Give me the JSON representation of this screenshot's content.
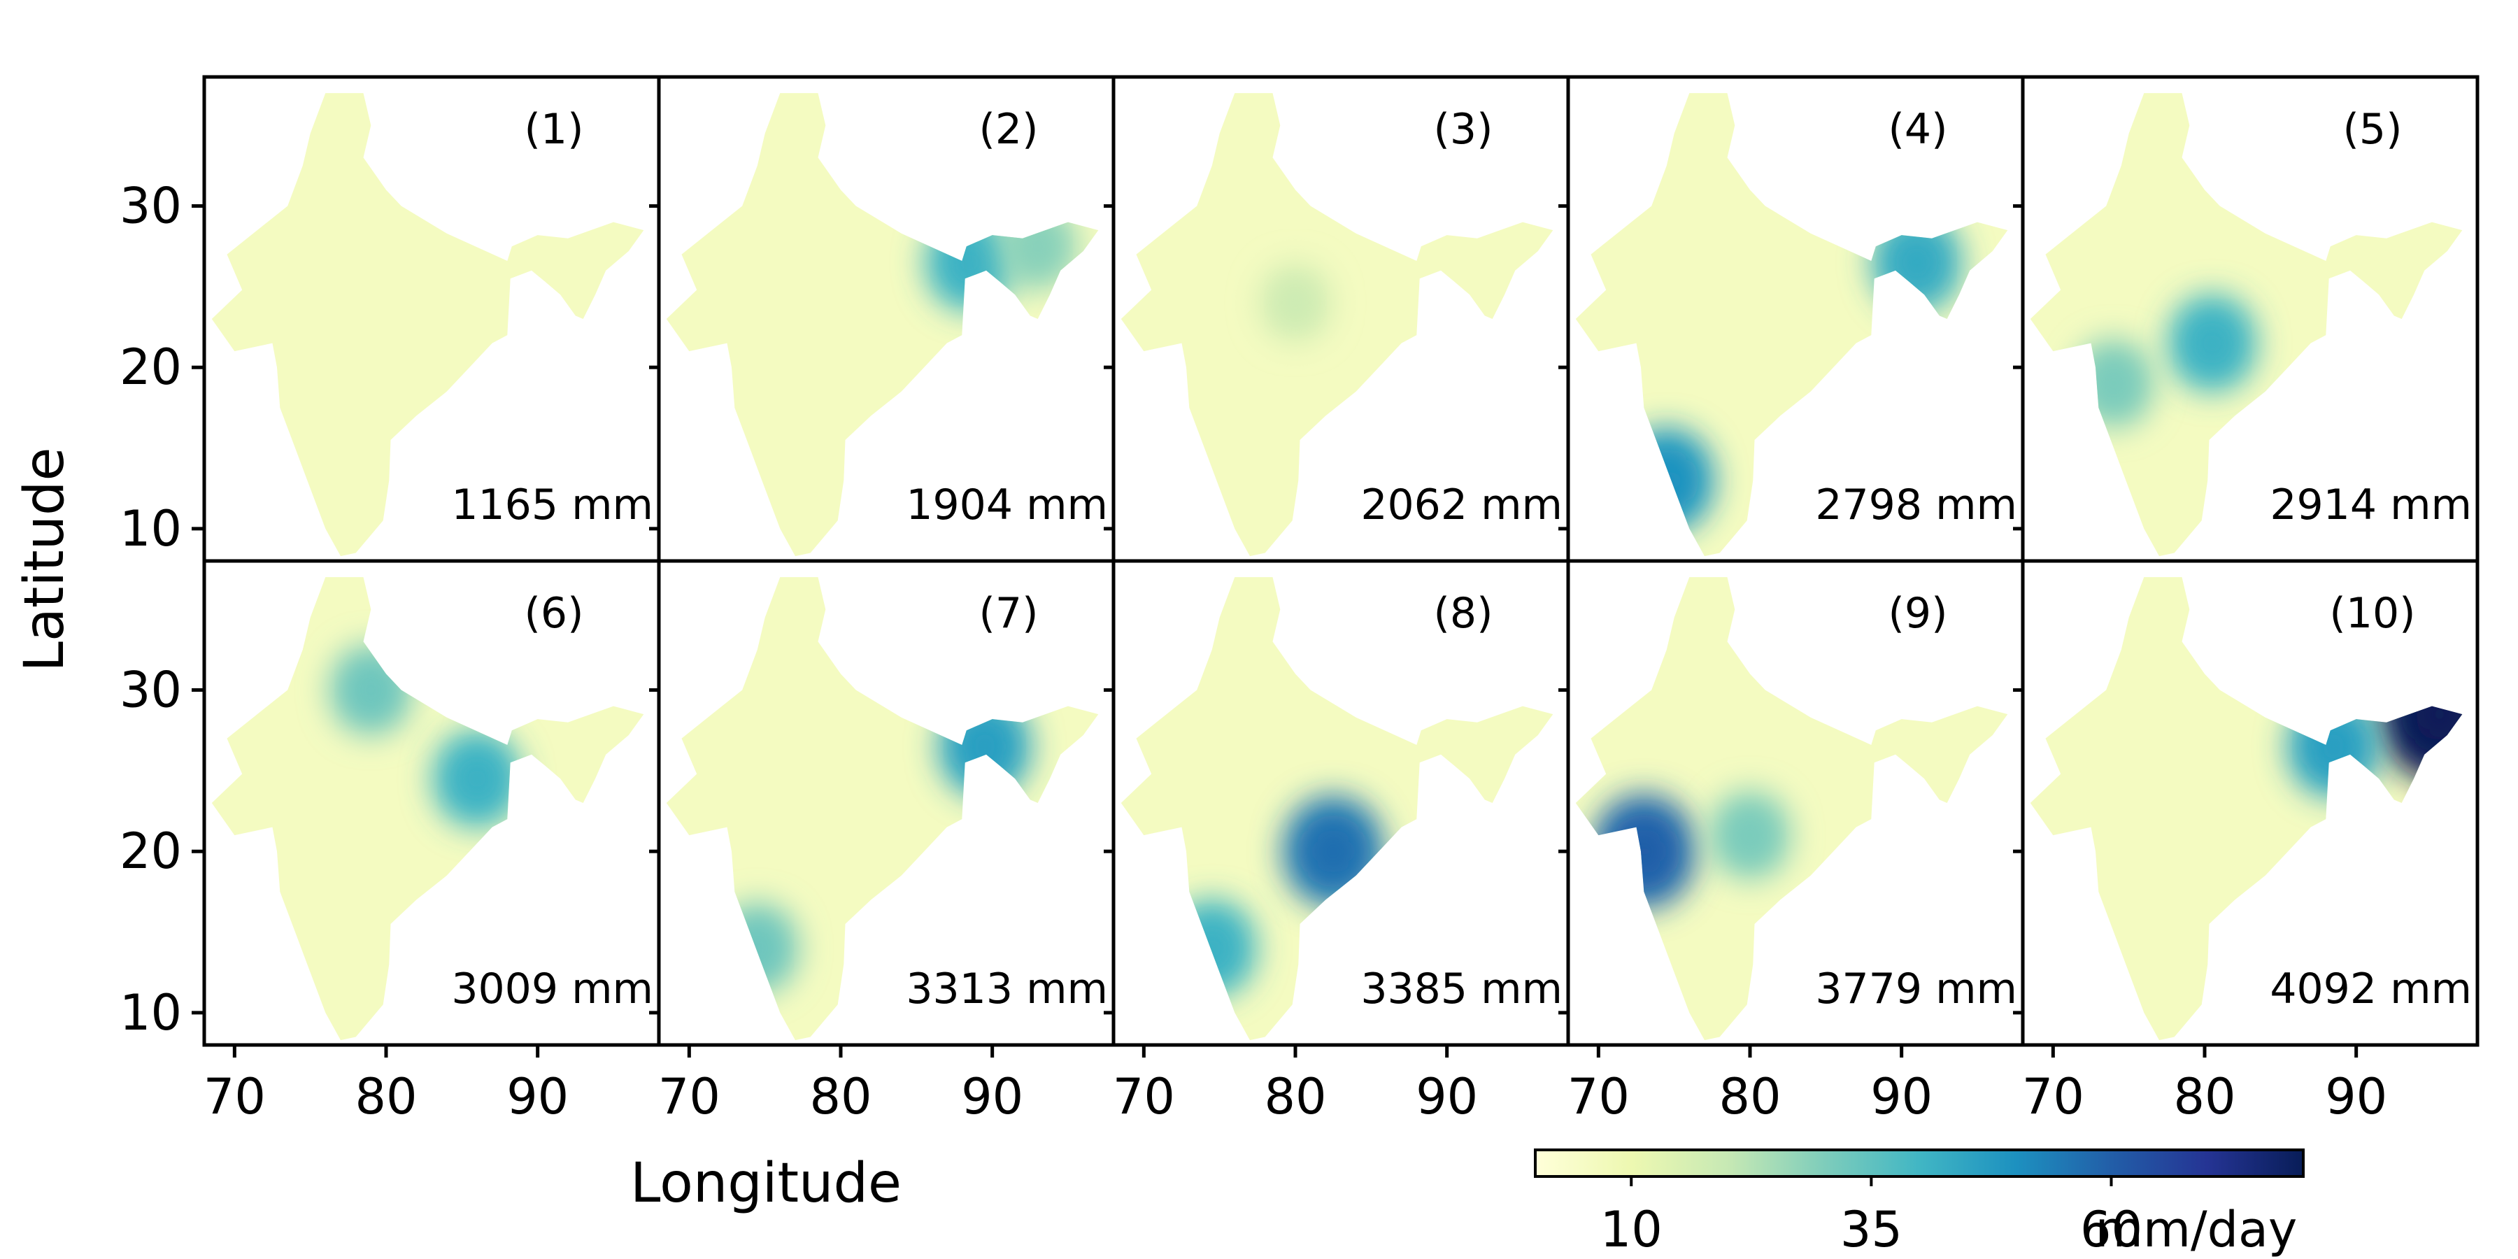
{
  "chart_data": {
    "type": "heatmap",
    "xlabel": "Longitude",
    "ylabel": "Latitude",
    "xlim": [
      68,
      98
    ],
    "ylim": [
      8,
      38
    ],
    "x_ticks": [
      "70",
      "80",
      "90"
    ],
    "y_ticks": [
      "10",
      "20",
      "30"
    ],
    "layout": {
      "rows": 2,
      "cols": 5
    },
    "colorbar": {
      "label": "mm/day",
      "range": [
        0,
        80
      ],
      "ticks": [
        10,
        35,
        60
      ],
      "tick_labels": [
        "10",
        "35",
        "60"
      ],
      "colormap": "YlGnBu",
      "colors": [
        "#ffffd9",
        "#edf8b1",
        "#c7e9b4",
        "#7fcdbb",
        "#41b6c4",
        "#1d91c0",
        "#225ea8",
        "#253494",
        "#081d58"
      ]
    },
    "panels": [
      {
        "label": "(1)",
        "total": "1165 mm",
        "hotspots": []
      },
      {
        "label": "(2)",
        "total": "1904 mm",
        "hotspots": [
          {
            "lon": 88.5,
            "lat": 26.5,
            "value": 40
          },
          {
            "lon": 93,
            "lat": 27.5,
            "value": 28
          }
        ]
      },
      {
        "label": "(3)",
        "total": "2062 mm",
        "hotspots": [
          {
            "lon": 80,
            "lat": 24,
            "value": 18
          }
        ]
      },
      {
        "label": "(4)",
        "total": "2798 mm",
        "hotspots": [
          {
            "lon": 74.5,
            "lat": 13,
            "value": 48
          },
          {
            "lon": 91,
            "lat": 26.5,
            "value": 42
          }
        ]
      },
      {
        "label": "(5)",
        "total": "2914 mm",
        "hotspots": [
          {
            "lon": 80.5,
            "lat": 21.5,
            "value": 40
          },
          {
            "lon": 74,
            "lat": 19,
            "value": 30
          }
        ]
      },
      {
        "label": "(6)",
        "total": "3009 mm",
        "hotspots": [
          {
            "lon": 86,
            "lat": 24.5,
            "value": 40
          },
          {
            "lon": 79,
            "lat": 30,
            "value": 32
          }
        ]
      },
      {
        "label": "(7)",
        "total": "3313 mm",
        "hotspots": [
          {
            "lon": 89.5,
            "lat": 26.5,
            "value": 45
          },
          {
            "lon": 74.5,
            "lat": 14,
            "value": 32
          }
        ]
      },
      {
        "label": "(8)",
        "total": "3385 mm",
        "hotspots": [
          {
            "lon": 82.5,
            "lat": 20,
            "value": 55
          },
          {
            "lon": 74.5,
            "lat": 14,
            "value": 40
          }
        ]
      },
      {
        "label": "(9)",
        "total": "3779 mm",
        "hotspots": [
          {
            "lon": 73,
            "lat": 20,
            "value": 58
          },
          {
            "lon": 80,
            "lat": 21,
            "value": 30
          }
        ]
      },
      {
        "label": "(10)",
        "total": "4092 mm",
        "hotspots": [
          {
            "lon": 95.5,
            "lat": 28.5,
            "value": 80
          },
          {
            "lon": 88.5,
            "lat": 26.5,
            "value": 45
          }
        ]
      }
    ]
  }
}
